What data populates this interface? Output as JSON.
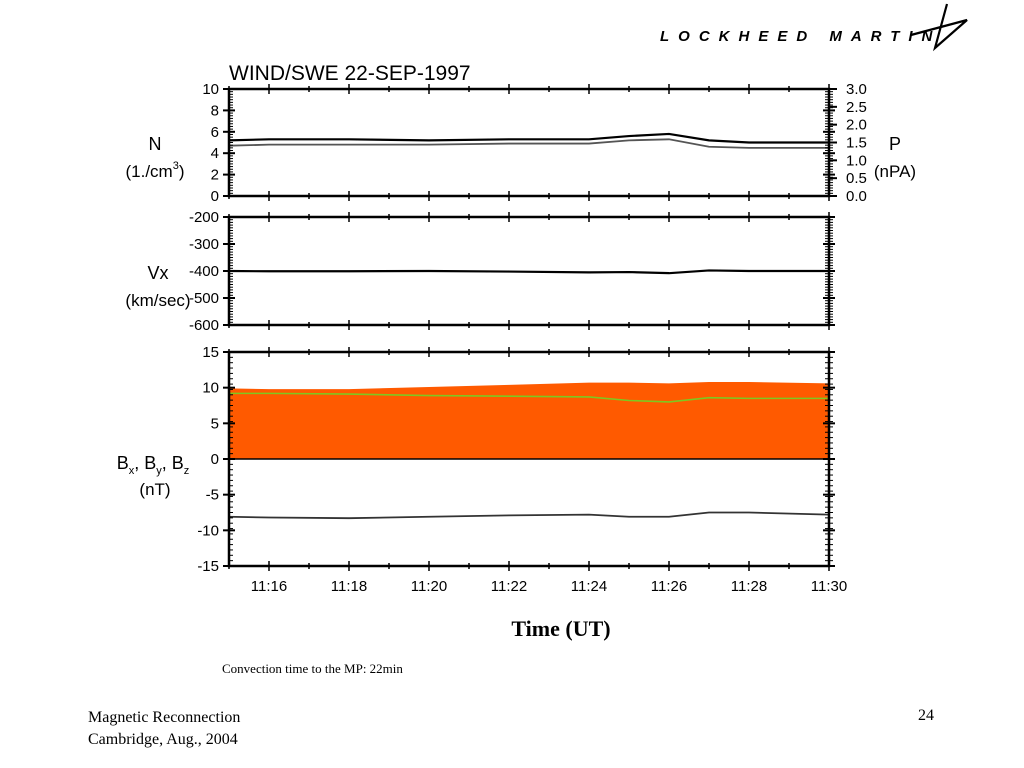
{
  "header": {
    "logo_text": "LOCKHEED MARTIN",
    "logo_icon": "lockheed-star-icon"
  },
  "chart_data": [
    {
      "type": "line",
      "panel": "density-pressure",
      "title": "WIND/SWE 22-SEP-1997",
      "ylabel": "N",
      "ylabel_unit": "(1./cm",
      "ylabel_unit_sup": "3",
      "ylabel_unit_end": ")",
      "ylim": [
        0,
        10
      ],
      "yticks": [
        0,
        2,
        4,
        6,
        8,
        10
      ],
      "y2label": "P",
      "y2label_unit": "(nPA)",
      "y2lim": [
        0,
        3
      ],
      "y2ticks": [
        "0.0",
        "0.5",
        "1.0",
        "1.5",
        "2.0",
        "2.5",
        "3.0"
      ],
      "x": [
        "11:15",
        "11:16",
        "11:18",
        "11:20",
        "11:22",
        "11:24",
        "11:25",
        "11:26",
        "11:27",
        "11:28",
        "11:30"
      ],
      "series": [
        {
          "values": [
            5.2,
            5.3,
            5.3,
            5.2,
            5.3,
            5.3,
            5.6,
            5.8,
            5.2,
            5.0,
            5.0
          ],
          "color": "#000000"
        },
        {
          "values": [
            4.7,
            4.8,
            4.8,
            4.8,
            4.9,
            4.9,
            5.2,
            5.3,
            4.6,
            4.5,
            4.5
          ],
          "color": "#555555"
        }
      ]
    },
    {
      "type": "line",
      "panel": "velocity",
      "ylabel": "Vx",
      "ylabel_unit": "(km/sec)",
      "ylim": [
        -600,
        -200
      ],
      "yticks": [
        "-600",
        "-500",
        "-400",
        "-300",
        "-200"
      ],
      "x": [
        "11:15",
        "11:16",
        "11:18",
        "11:20",
        "11:22",
        "11:24",
        "11:25",
        "11:26",
        "11:27",
        "11:28",
        "11:30"
      ],
      "series": [
        {
          "values": [
            -400,
            -401,
            -401,
            -400,
            -402,
            -405,
            -404,
            -408,
            -398,
            -400,
            -400
          ],
          "color": "#000000"
        }
      ]
    },
    {
      "type": "area",
      "panel": "magnetic-field",
      "ylabel": "B",
      "ylabel_subs": [
        "x",
        "y",
        "z"
      ],
      "ylabel_unit": "(nT)",
      "ylim": [
        -15,
        15
      ],
      "yticks": [
        -15,
        -10,
        -5,
        0,
        5,
        10,
        15
      ],
      "xlim": [
        "11:15",
        "11:30"
      ],
      "xticks": [
        "11:16",
        "11:18",
        "11:20",
        "11:22",
        "11:24",
        "11:26",
        "11:28",
        "11:30"
      ],
      "x": [
        "11:15",
        "11:16",
        "11:18",
        "11:20",
        "11:22",
        "11:24",
        "11:25",
        "11:26",
        "11:27",
        "11:28",
        "11:30"
      ],
      "series": [
        {
          "values": [
            9.9,
            9.8,
            9.8,
            10.1,
            10.4,
            10.7,
            10.7,
            10.6,
            10.8,
            10.8,
            10.6
          ],
          "color": "#ff5a00",
          "fill": true
        },
        {
          "values": [
            9.2,
            9.2,
            9.1,
            8.9,
            8.8,
            8.7,
            8.2,
            8.0,
            8.6,
            8.5,
            8.5
          ],
          "color": "#7ec820"
        },
        {
          "values": [
            -8.1,
            -8.2,
            -8.3,
            -8.1,
            -7.9,
            -7.8,
            -8.1,
            -8.1,
            -7.5,
            -7.5,
            -7.8
          ],
          "color": "#333333"
        }
      ]
    }
  ],
  "xaxis_title": "Time (UT)",
  "caption": "Convection time to the MP: 22min",
  "footer": {
    "line1": "Magnetic Reconnection",
    "line2": "Cambridge, Aug., 2004",
    "page_number": "24"
  }
}
